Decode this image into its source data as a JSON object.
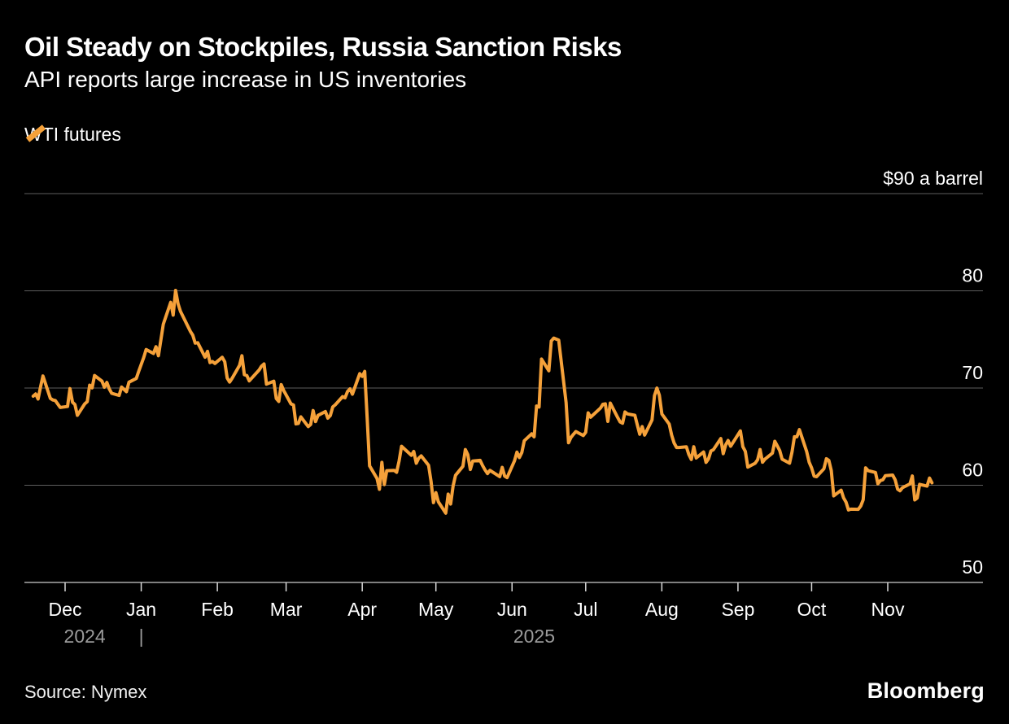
{
  "header": {
    "title": "Oil Steady on Stockpiles, Russia Sanction Risks",
    "subtitle": "API reports large increase in US inventories"
  },
  "legend": {
    "series_label": "WTI futures"
  },
  "footer": {
    "source": "Source: Nymex",
    "brand": "Bloomberg"
  },
  "colors": {
    "background": "#000000",
    "series_orange": "#F5A13A",
    "gridline": "#5E5E5E",
    "axis_line": "#ABABAB",
    "primary_text": "#FFFFFF",
    "secondary_text": "#9B9B9B"
  },
  "chart_data": {
    "type": "line",
    "title": "Oil Steady on Stockpiles, Russia Sanction Risks",
    "subtitle": "API reports large increase in US inventories",
    "legend_position": "top-left",
    "grid": true,
    "ylim": [
      50,
      90
    ],
    "x_range": [
      "2024-11-18",
      "2025-11-19"
    ],
    "y_axis": {
      "min": 50,
      "max": 90,
      "ticks": [
        {
          "value": 90,
          "label": "$90 a barrel"
        },
        {
          "value": 80,
          "label": "80"
        },
        {
          "value": 70,
          "label": "70"
        },
        {
          "value": 60,
          "label": "60"
        },
        {
          "value": 50,
          "label": "50"
        }
      ]
    },
    "x_ticks": [
      {
        "label": "Dec",
        "date": "2024-12-01"
      },
      {
        "label": "Jan",
        "date": "2025-01-01"
      },
      {
        "label": "Feb",
        "date": "2025-02-01"
      },
      {
        "label": "Mar",
        "date": "2025-03-01"
      },
      {
        "label": "Apr",
        "date": "2025-04-01"
      },
      {
        "label": "May",
        "date": "2025-05-01"
      },
      {
        "label": "Jun",
        "date": "2025-06-01"
      },
      {
        "label": "Jul",
        "date": "2025-07-01"
      },
      {
        "label": "Aug",
        "date": "2025-08-01"
      },
      {
        "label": "Sep",
        "date": "2025-09-01"
      },
      {
        "label": "Oct",
        "date": "2025-10-01"
      },
      {
        "label": "Nov",
        "date": "2025-11-01"
      }
    ],
    "year_labels": [
      {
        "label": "2024",
        "center_date": "2024-12-09"
      },
      {
        "label": "|",
        "center_date": "2025-01-01"
      },
      {
        "label": "2025",
        "center_date": "2025-06-10"
      }
    ],
    "series": [
      {
        "name": "WTI futures",
        "color": "#F5A13A",
        "dates": [
          "2024-11-18",
          "2024-11-19",
          "2024-11-20",
          "2024-11-21",
          "2024-11-22",
          "2024-11-25",
          "2024-11-26",
          "2024-11-27",
          "2024-11-29",
          "2024-12-02",
          "2024-12-03",
          "2024-12-04",
          "2024-12-05",
          "2024-12-06",
          "2024-12-09",
          "2024-12-10",
          "2024-12-11",
          "2024-12-12",
          "2024-12-13",
          "2024-12-16",
          "2024-12-17",
          "2024-12-18",
          "2024-12-19",
          "2024-12-20",
          "2024-12-23",
          "2024-12-24",
          "2024-12-26",
          "2024-12-27",
          "2024-12-30",
          "2024-12-31",
          "2025-01-02",
          "2025-01-03",
          "2025-01-06",
          "2025-01-07",
          "2025-01-08",
          "2025-01-10",
          "2025-01-13",
          "2025-01-14",
          "2025-01-15",
          "2025-01-16",
          "2025-01-17",
          "2025-01-21",
          "2025-01-22",
          "2025-01-23",
          "2025-01-24",
          "2025-01-27",
          "2025-01-28",
          "2025-01-29",
          "2025-01-30",
          "2025-01-31",
          "2025-02-03",
          "2025-02-04",
          "2025-02-05",
          "2025-02-06",
          "2025-02-07",
          "2025-02-10",
          "2025-02-11",
          "2025-02-12",
          "2025-02-13",
          "2025-02-14",
          "2025-02-18",
          "2025-02-19",
          "2025-02-20",
          "2025-02-21",
          "2025-02-24",
          "2025-02-25",
          "2025-02-26",
          "2025-02-27",
          "2025-02-28",
          "2025-03-03",
          "2025-03-04",
          "2025-03-05",
          "2025-03-06",
          "2025-03-07",
          "2025-03-10",
          "2025-03-11",
          "2025-03-12",
          "2025-03-13",
          "2025-03-14",
          "2025-03-17",
          "2025-03-18",
          "2025-03-19",
          "2025-03-20",
          "2025-03-21",
          "2025-03-24",
          "2025-03-25",
          "2025-03-26",
          "2025-03-27",
          "2025-03-28",
          "2025-03-31",
          "2025-04-01",
          "2025-04-02",
          "2025-04-03",
          "2025-04-04",
          "2025-04-07",
          "2025-04-08",
          "2025-04-09",
          "2025-04-10",
          "2025-04-11",
          "2025-04-14",
          "2025-04-15",
          "2025-04-16",
          "2025-04-17",
          "2025-04-21",
          "2025-04-22",
          "2025-04-23",
          "2025-04-24",
          "2025-04-25",
          "2025-04-28",
          "2025-04-29",
          "2025-04-30",
          "2025-05-01",
          "2025-05-02",
          "2025-05-05",
          "2025-05-06",
          "2025-05-07",
          "2025-05-08",
          "2025-05-09",
          "2025-05-12",
          "2025-05-13",
          "2025-05-14",
          "2025-05-15",
          "2025-05-16",
          "2025-05-19",
          "2025-05-20",
          "2025-05-21",
          "2025-05-22",
          "2025-05-23",
          "2025-05-27",
          "2025-05-28",
          "2025-05-29",
          "2025-05-30",
          "2025-06-02",
          "2025-06-03",
          "2025-06-04",
          "2025-06-05",
          "2025-06-06",
          "2025-06-09",
          "2025-06-10",
          "2025-06-11",
          "2025-06-12",
          "2025-06-13",
          "2025-06-16",
          "2025-06-17",
          "2025-06-18",
          "2025-06-20",
          "2025-06-23",
          "2025-06-24",
          "2025-06-25",
          "2025-06-26",
          "2025-06-27",
          "2025-06-30",
          "2025-07-01",
          "2025-07-02",
          "2025-07-03",
          "2025-07-07",
          "2025-07-08",
          "2025-07-09",
          "2025-07-10",
          "2025-07-11",
          "2025-07-14",
          "2025-07-15",
          "2025-07-16",
          "2025-07-17",
          "2025-07-18",
          "2025-07-21",
          "2025-07-22",
          "2025-07-23",
          "2025-07-24",
          "2025-07-25",
          "2025-07-28",
          "2025-07-29",
          "2025-07-30",
          "2025-07-31",
          "2025-08-01",
          "2025-08-04",
          "2025-08-05",
          "2025-08-06",
          "2025-08-07",
          "2025-08-08",
          "2025-08-11",
          "2025-08-12",
          "2025-08-13",
          "2025-08-14",
          "2025-08-15",
          "2025-08-18",
          "2025-08-19",
          "2025-08-20",
          "2025-08-21",
          "2025-08-22",
          "2025-08-25",
          "2025-08-26",
          "2025-08-27",
          "2025-08-28",
          "2025-08-29",
          "2025-09-02",
          "2025-09-03",
          "2025-09-04",
          "2025-09-05",
          "2025-09-08",
          "2025-09-09",
          "2025-09-10",
          "2025-09-11",
          "2025-09-12",
          "2025-09-15",
          "2025-09-16",
          "2025-09-17",
          "2025-09-18",
          "2025-09-19",
          "2025-09-22",
          "2025-09-23",
          "2025-09-24",
          "2025-09-25",
          "2025-09-26",
          "2025-09-29",
          "2025-09-30",
          "2025-10-01",
          "2025-10-02",
          "2025-10-03",
          "2025-10-06",
          "2025-10-07",
          "2025-10-08",
          "2025-10-09",
          "2025-10-10",
          "2025-10-13",
          "2025-10-14",
          "2025-10-15",
          "2025-10-16",
          "2025-10-17",
          "2025-10-20",
          "2025-10-21",
          "2025-10-22",
          "2025-10-23",
          "2025-10-24",
          "2025-10-27",
          "2025-10-28",
          "2025-10-29",
          "2025-10-30",
          "2025-10-31",
          "2025-11-03",
          "2025-11-04",
          "2025-11-05",
          "2025-11-06",
          "2025-11-07",
          "2025-11-10",
          "2025-11-11",
          "2025-11-12",
          "2025-11-13",
          "2025-11-14",
          "2025-11-17",
          "2025-11-18",
          "2025-11-19"
        ],
        "values": [
          69.16,
          69.39,
          68.87,
          70.1,
          71.24,
          68.94,
          68.77,
          68.72,
          68.0,
          68.1,
          69.94,
          68.54,
          68.3,
          67.2,
          68.37,
          68.59,
          70.29,
          70.02,
          71.29,
          70.71,
          70.08,
          70.58,
          69.91,
          69.46,
          69.24,
          70.1,
          69.62,
          70.6,
          70.99,
          71.72,
          73.13,
          73.96,
          73.56,
          74.25,
          73.32,
          76.57,
          78.82,
          77.5,
          80.04,
          78.68,
          77.88,
          75.83,
          75.44,
          74.62,
          74.66,
          73.17,
          73.77,
          72.62,
          72.73,
          72.53,
          73.16,
          72.7,
          71.03,
          70.61,
          71.0,
          72.32,
          73.32,
          71.37,
          71.29,
          70.74,
          71.85,
          72.25,
          72.48,
          70.4,
          70.7,
          68.93,
          68.62,
          70.35,
          69.76,
          68.37,
          68.26,
          66.31,
          66.36,
          67.04,
          66.03,
          66.25,
          67.68,
          66.55,
          67.18,
          67.58,
          66.9,
          67.16,
          68.07,
          68.28,
          69.11,
          69.0,
          69.65,
          69.92,
          69.36,
          71.48,
          71.2,
          71.71,
          66.95,
          61.99,
          60.7,
          59.58,
          62.35,
          60.07,
          61.5,
          61.53,
          61.33,
          62.47,
          64.01,
          63.08,
          63.47,
          62.27,
          62.79,
          63.02,
          62.05,
          60.42,
          58.21,
          59.24,
          58.29,
          57.13,
          59.09,
          58.07,
          59.91,
          61.02,
          61.95,
          63.67,
          63.15,
          61.62,
          62.49,
          62.56,
          62.03,
          61.57,
          61.2,
          61.53,
          60.89,
          61.84,
          60.94,
          60.79,
          62.52,
          63.41,
          62.85,
          63.37,
          64.58,
          65.29,
          64.98,
          68.15,
          68.04,
          72.98,
          71.77,
          74.84,
          75.14,
          74.93,
          68.51,
          64.37,
          64.92,
          65.24,
          65.52,
          65.11,
          65.45,
          67.45,
          67.0,
          67.93,
          68.33,
          68.38,
          66.57,
          68.45,
          66.98,
          66.52,
          66.38,
          67.54,
          67.34,
          67.2,
          66.21,
          65.25,
          66.03,
          65.16,
          66.71,
          69.21,
          70.0,
          69.26,
          67.33,
          66.29,
          65.16,
          64.35,
          63.88,
          63.88,
          63.96,
          63.17,
          62.65,
          63.96,
          62.8,
          63.42,
          62.35,
          62.71,
          63.52,
          63.66,
          64.8,
          63.25,
          64.15,
          64.6,
          64.01,
          65.59,
          63.97,
          63.48,
          61.87,
          62.26,
          62.63,
          63.67,
          62.37,
          62.69,
          63.3,
          64.52,
          64.05,
          63.57,
          62.68,
          62.27,
          63.41,
          64.99,
          64.98,
          65.72,
          63.45,
          62.37,
          61.78,
          60.94,
          60.88,
          61.69,
          62.73,
          62.55,
          61.51,
          58.9,
          59.49,
          58.7,
          58.27,
          57.46,
          57.54,
          57.52,
          57.86,
          58.5,
          61.79,
          61.5,
          61.31,
          60.15,
          60.48,
          60.57,
          60.98,
          61.05,
          60.56,
          59.6,
          59.43,
          59.75,
          60.13,
          60.95,
          58.49,
          58.69,
          60.09,
          59.91,
          60.74,
          60.25
        ]
      }
    ]
  }
}
